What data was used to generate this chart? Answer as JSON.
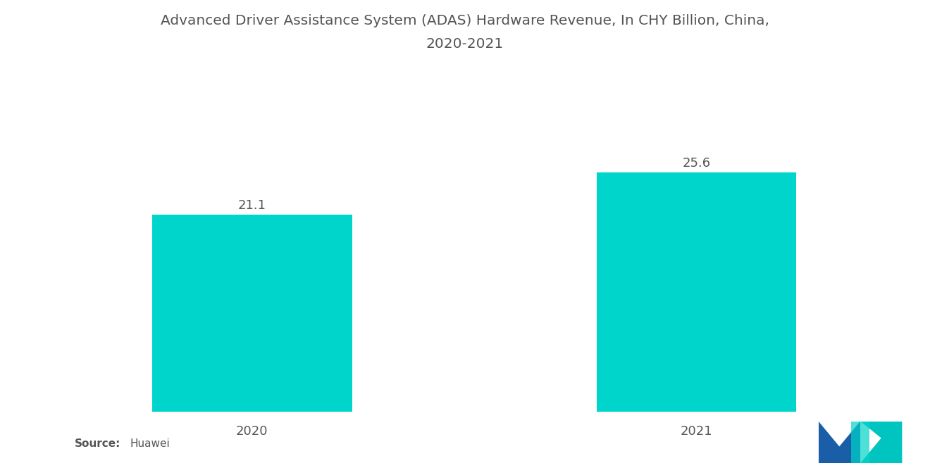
{
  "title_line1": "Advanced Driver Assistance System (ADAS) Hardware Revenue, In CHY Billion, China,",
  "title_line2": "2020-2021",
  "categories": [
    "2020",
    "2021"
  ],
  "values": [
    21.1,
    25.6
  ],
  "bar_color": "#00D5CB",
  "background_color": "#ffffff",
  "value_labels": [
    "21.1",
    "25.6"
  ],
  "source_bold": "Source:",
  "source_text": "Huawei",
  "title_fontsize": 14.5,
  "label_fontsize": 13,
  "value_fontsize": 13,
  "source_fontsize": 11,
  "text_color": "#555555",
  "ylim": [
    0,
    30
  ]
}
